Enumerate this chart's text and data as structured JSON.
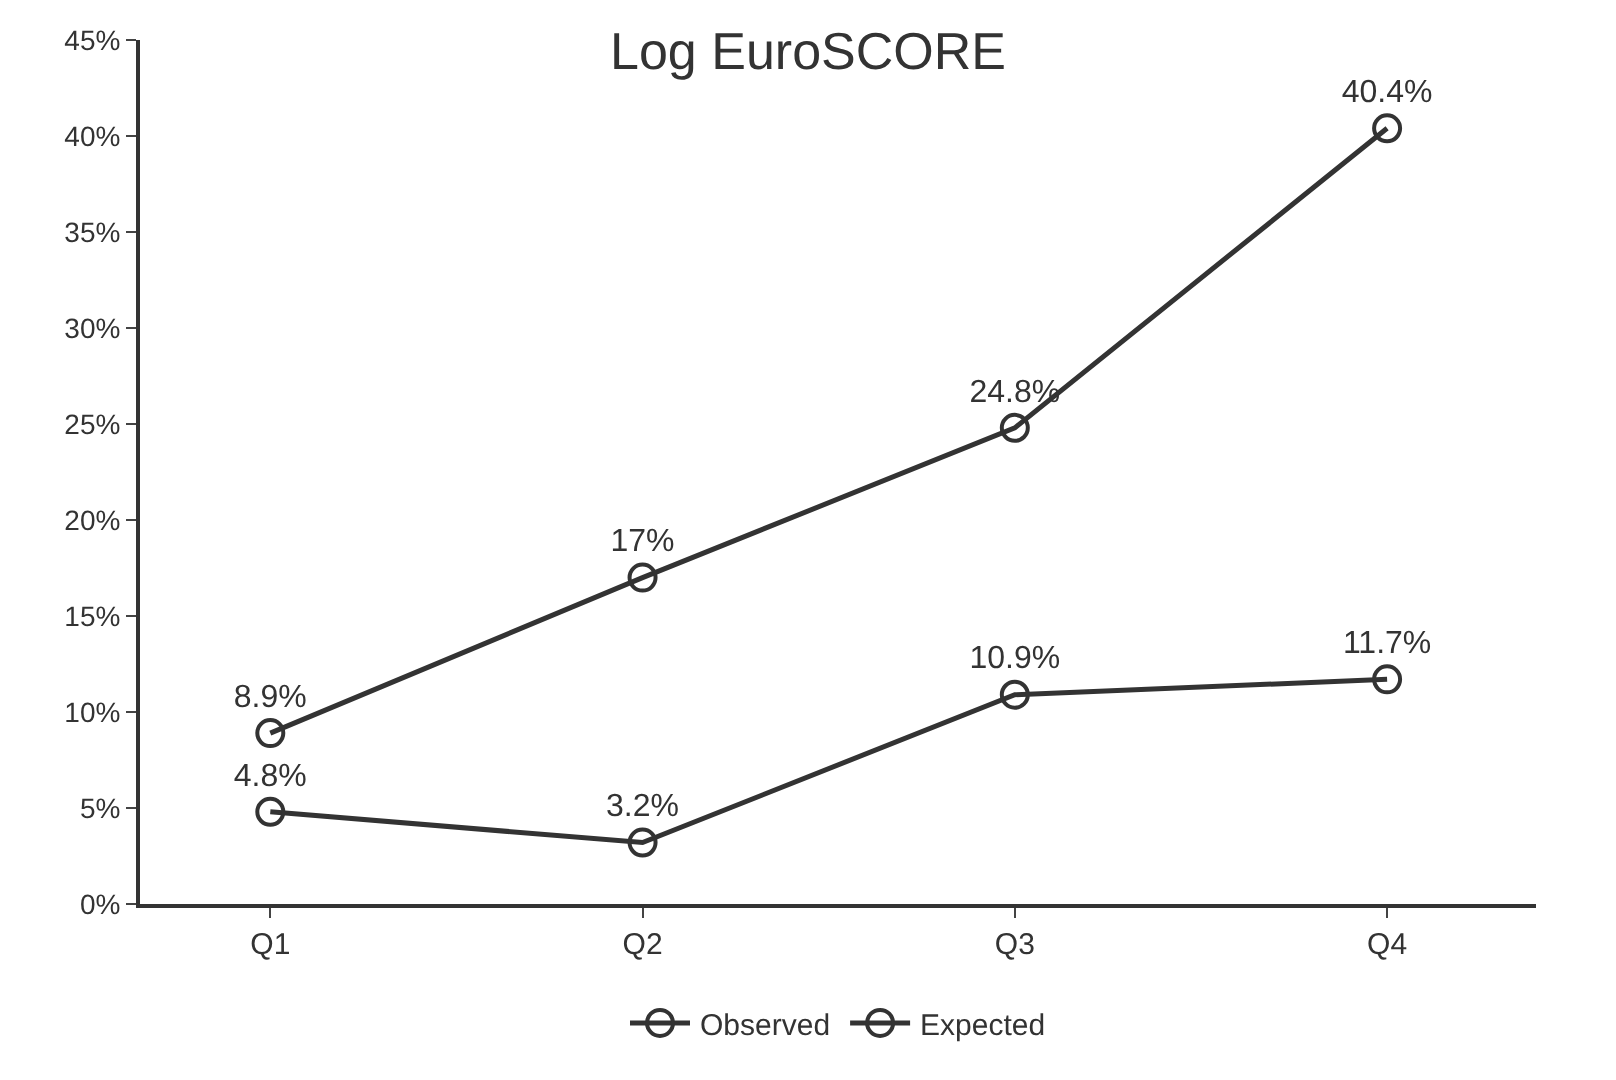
{
  "chart_data": {
    "type": "line",
    "title": "Log EuroSCORE",
    "categories": [
      "Q1",
      "Q2",
      "Q3",
      "Q4"
    ],
    "series": [
      {
        "name": "Observed",
        "color": "#333333",
        "values": [
          4.8,
          3.2,
          10.9,
          11.7
        ],
        "value_labels": [
          "4.8%",
          "3.2%",
          "10.9%",
          "11.7%"
        ]
      },
      {
        "name": "Expected",
        "color": "#333333",
        "values": [
          8.9,
          17,
          24.8,
          40.4
        ],
        "value_labels": [
          "8.9%",
          "17%",
          "24.8%",
          "40.4%"
        ]
      }
    ],
    "ylim": [
      0,
      45
    ],
    "yticks": [
      {
        "value": 0,
        "label": "0%"
      },
      {
        "value": 5,
        "label": "5%"
      },
      {
        "value": 10,
        "label": "10%"
      },
      {
        "value": 15,
        "label": "15%"
      },
      {
        "value": 20,
        "label": "20%"
      },
      {
        "value": 25,
        "label": "25%"
      },
      {
        "value": 30,
        "label": "30%"
      },
      {
        "value": 35,
        "label": "35%"
      },
      {
        "value": 40,
        "label": "40%"
      },
      {
        "value": 45,
        "label": "45%"
      }
    ],
    "marker": "circle",
    "line_style": "solid",
    "legend": "bottom"
  }
}
